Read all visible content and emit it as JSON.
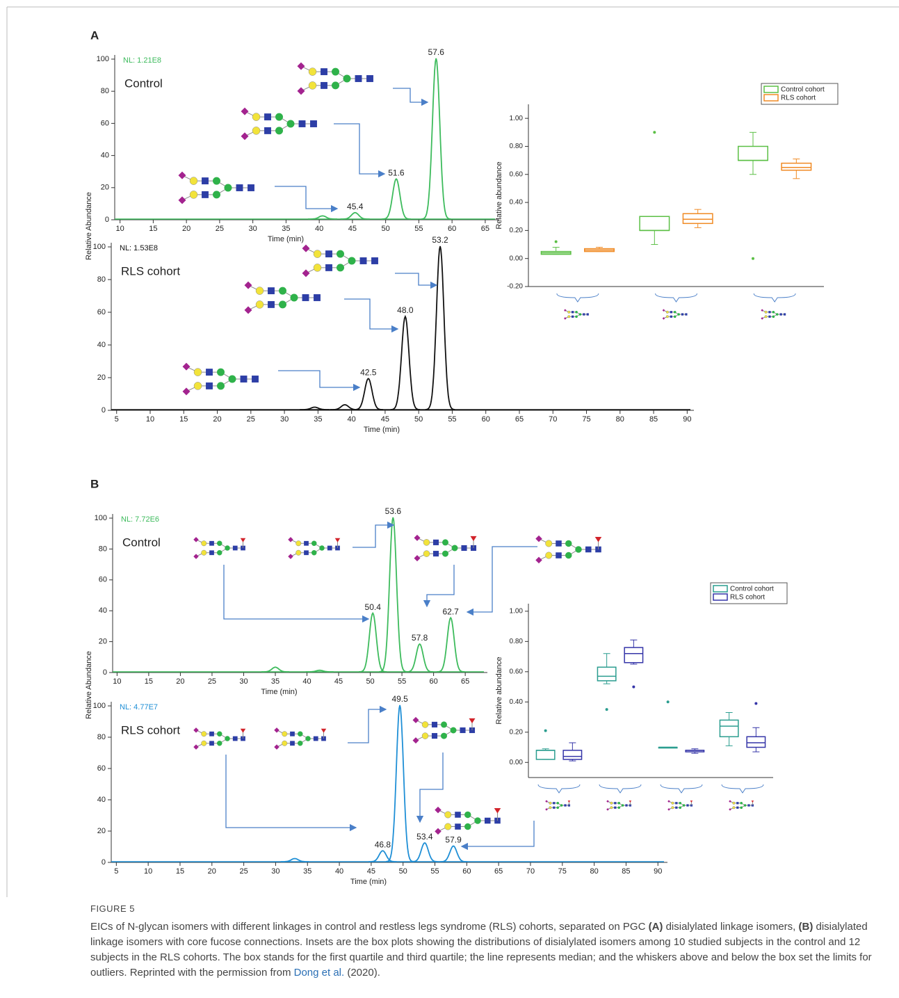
{
  "panels": [
    {
      "label": "A",
      "charts": [
        {
          "type": "line",
          "title": "Control",
          "note": "NL: 1.21E8",
          "xlabel": "Time (min)",
          "color": "#3dbb5c",
          "note_color": "#3dbb5c",
          "x": [
            40.5,
            45.4,
            51.6,
            57.6
          ],
          "values": [
            2,
            4,
            25,
            100
          ],
          "x_labels": [
            null,
            "45.4",
            "51.6",
            "57.6"
          ],
          "xlim": [
            9.2,
            67
          ],
          "xticks": [
            10,
            15,
            20,
            25,
            30,
            35,
            40,
            45,
            50,
            55,
            60,
            65
          ],
          "ylim": [
            0,
            100
          ],
          "yticks": [
            0,
            20,
            40,
            60,
            80,
            100
          ]
        },
        {
          "type": "line",
          "title": "RLS cohort",
          "note": "NL: 1.53E8",
          "xlabel": "Time (min)",
          "ylabel": "Relative Abundance",
          "color": "#111111",
          "note_color": "#111111",
          "x": [
            34.5,
            39,
            42.5,
            48,
            53.2
          ],
          "values": [
            1.5,
            3,
            19,
            57,
            100
          ],
          "x_labels": [
            null,
            null,
            "42.5",
            "48.0",
            "53.2"
          ],
          "xlim": [
            4.2,
            91
          ],
          "xticks": [
            5,
            10,
            15,
            20,
            25,
            30,
            35,
            40,
            45,
            50,
            55,
            60,
            65,
            70,
            75,
            80,
            85,
            90
          ],
          "ylim": [
            0,
            100
          ],
          "yticks": [
            0,
            20,
            40,
            60,
            80,
            100
          ]
        },
        {
          "type": "box",
          "ylabel": "Relative abundance",
          "legend": "top-right",
          "categories": [
            null,
            null,
            null
          ],
          "ylim": [
            -0.2,
            1.1
          ],
          "yticks": [
            {
              "value": -0.2,
              "label": "-0.20"
            },
            {
              "value": 0,
              "label": "0.00"
            },
            {
              "value": 0.2,
              "label": "0.20"
            },
            {
              "value": 0.4,
              "label": "0.40"
            },
            {
              "value": 0.6,
              "label": "0.60"
            },
            {
              "value": 0.8,
              "label": "0.80"
            },
            {
              "value": 1,
              "label": "1.00"
            }
          ],
          "series": [
            {
              "name": "Control cohort",
              "color": "#5bbf45",
              "boxes": [
                {
                  "min": 0.03,
                  "q1": 0.03,
                  "median": 0.04,
                  "q3": 0.05,
                  "max": 0.08,
                  "outliers": [
                    0.12
                  ]
                },
                {
                  "min": 0.1,
                  "q1": 0.2,
                  "median": 0.2,
                  "q3": 0.3,
                  "max": 0.3,
                  "outliers": [
                    0.9
                  ]
                },
                {
                  "min": 0.6,
                  "q1": 0.7,
                  "median": 0.7,
                  "q3": 0.8,
                  "max": 0.9,
                  "outliers": [
                    0
                  ]
                }
              ]
            },
            {
              "name": "RLS cohort",
              "color": "#f08a24",
              "boxes": [
                {
                  "min": 0.05,
                  "q1": 0.05,
                  "median": 0.06,
                  "q3": 0.07,
                  "max": 0.08
                },
                {
                  "min": 0.22,
                  "q1": 0.25,
                  "median": 0.28,
                  "q3": 0.32,
                  "max": 0.35
                },
                {
                  "min": 0.57,
                  "q1": 0.63,
                  "median": 0.65,
                  "q3": 0.68,
                  "max": 0.71
                }
              ]
            }
          ]
        }
      ]
    },
    {
      "label": "B",
      "charts": [
        {
          "type": "line",
          "title": "Control",
          "note": "NL: 7.72E6",
          "xlabel": "Time (min)",
          "color": "#3dbb5c",
          "note_color": "#3dbb5c",
          "x": [
            35,
            42,
            50.4,
            53.6,
            57.8,
            62.7
          ],
          "values": [
            3,
            1,
            38,
            100,
            18,
            35
          ],
          "x_labels": [
            null,
            null,
            "50.4",
            "53.6",
            "57.8",
            "62.7"
          ],
          "xlim": [
            9.3,
            68.5
          ],
          "xticks": [
            10,
            15,
            20,
            25,
            30,
            35,
            40,
            45,
            50,
            55,
            60,
            65
          ],
          "ylim": [
            0,
            100
          ],
          "yticks": [
            0,
            20,
            40,
            60,
            80,
            100
          ]
        },
        {
          "type": "line",
          "title": "RLS cohort",
          "note": "NL: 4.77E7",
          "xlabel": "Time (min)",
          "ylabel": "Relative Abundance",
          "color": "#1f8fd6",
          "note_color": "#1f8fd6",
          "x": [
            33,
            46.8,
            49.5,
            53.4,
            57.9
          ],
          "values": [
            2,
            7,
            100,
            12,
            10
          ],
          "x_labels": [
            null,
            "46.8",
            "49.5",
            "53.4",
            "57.9"
          ],
          "xlim": [
            4.2,
            91.5
          ],
          "xticks": [
            5,
            10,
            15,
            20,
            25,
            30,
            35,
            40,
            45,
            50,
            55,
            60,
            65,
            70,
            75,
            80,
            85,
            90
          ],
          "ylim": [
            0,
            100
          ],
          "yticks": [
            0,
            20,
            40,
            60,
            80,
            100
          ]
        },
        {
          "type": "box",
          "ylabel": "Relative abundance",
          "legend": "top-right",
          "categories": [
            null,
            null,
            null,
            null
          ],
          "ylim": [
            -0.1,
            1.05
          ],
          "yticks": [
            {
              "value": 0,
              "label": "0.00"
            },
            {
              "value": 0.2,
              "label": "0.20"
            },
            {
              "value": 0.4,
              "label": "0.40"
            },
            {
              "value": 0.6,
              "label": "0.60"
            },
            {
              "value": 0.8,
              "label": "0.80"
            },
            {
              "value": 1,
              "label": "1.00"
            }
          ],
          "series": [
            {
              "name": "Control cohort",
              "color": "#2a9d8f",
              "boxes": [
                {
                  "min": 0.02,
                  "q1": 0.02,
                  "median": 0.08,
                  "q3": 0.08,
                  "max": 0.09,
                  "outliers": [
                    0.21
                  ]
                },
                {
                  "min": 0.52,
                  "q1": 0.54,
                  "median": 0.57,
                  "q3": 0.63,
                  "max": 0.72,
                  "outliers": [
                    0.35
                  ]
                },
                {
                  "min": 0.1,
                  "q1": 0.1,
                  "median": 0.1,
                  "q3": 0.1,
                  "max": 0.1,
                  "outliers": [
                    0.4
                  ]
                },
                {
                  "min": 0.11,
                  "q1": 0.17,
                  "median": 0.24,
                  "q3": 0.28,
                  "max": 0.33
                }
              ]
            },
            {
              "name": "RLS cohort",
              "color": "#3535a8",
              "boxes": [
                {
                  "min": 0.01,
                  "q1": 0.02,
                  "median": 0.04,
                  "q3": 0.08,
                  "max": 0.13
                },
                {
                  "min": 0.65,
                  "q1": 0.66,
                  "median": 0.72,
                  "q3": 0.76,
                  "max": 0.81,
                  "outliers": [
                    0.5
                  ]
                },
                {
                  "min": 0.06,
                  "q1": 0.07,
                  "median": 0.08,
                  "q3": 0.08,
                  "max": 0.09
                },
                {
                  "min": 0.07,
                  "q1": 0.1,
                  "median": 0.13,
                  "q3": 0.17,
                  "max": 0.23,
                  "outliers": [
                    0.39
                  ]
                }
              ]
            }
          ]
        }
      ]
    }
  ],
  "caption": {
    "label": "FIGURE 5",
    "body": "EICs of N-glycan isomers with different linkages in control and restless legs syndrome (RLS) cohorts, separated on PGC ",
    "a": "(A)",
    "mid1": " disialylated linkage isomers, ",
    "b": "(B)",
    "rest": " disialylated linkage isomers with core fucose connections. Insets are the box plots showing the distributions of disialylated isomers among 10 studied subjects in the control and 12 subjects in the RLS cohorts. The box stands for the first quartile and third quartile; the line represents median; and the whiskers above and below the box set the limits for outliers. Reprinted with the permission from ",
    "citation": "Dong et al.",
    "year": " (2020)."
  }
}
